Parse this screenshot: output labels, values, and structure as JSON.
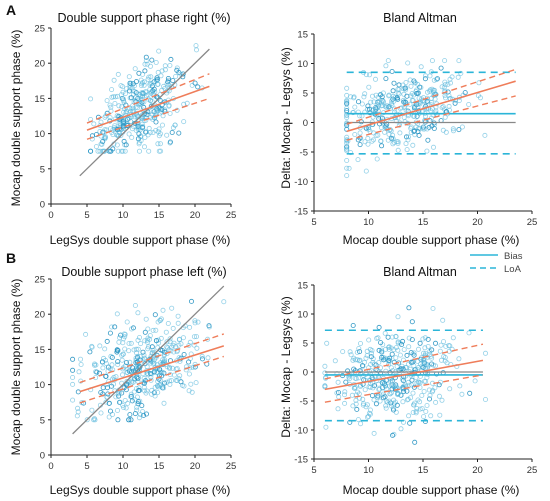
{
  "panel_labels": {
    "a": "A",
    "b": "B"
  },
  "legend": {
    "bias": "Bias",
    "loa": "LoA"
  },
  "colors": {
    "points": "#5bb8dc",
    "points_dark": "#1f8fc0",
    "regression": "#ef7d5a",
    "identity": "#888888",
    "bias_loa": "#2bb5d8",
    "zero": "#888888"
  },
  "chart_data": [
    {
      "type": "scatter",
      "title": "Double support phase right (%)",
      "xlabel": "LegSys double support phase (%)",
      "ylabel": "Mocap double support phase (%)",
      "xlim": [
        0,
        25
      ],
      "ylim": [
        0,
        25
      ],
      "xticks": [
        "0",
        "5",
        "10",
        "15",
        "20",
        "25"
      ],
      "yticks": [
        "0",
        "5",
        "10",
        "15",
        "20",
        "25"
      ],
      "identity_line": {
        "x": [
          4,
          22
        ],
        "y": [
          4,
          22
        ]
      },
      "regression": {
        "x": [
          5,
          22
        ],
        "y": [
          10.5,
          16.7
        ]
      },
      "ci_upper": {
        "x": [
          5,
          22
        ],
        "y": [
          11.5,
          18.5
        ]
      },
      "ci_lower": {
        "x": [
          5,
          22
        ],
        "y": [
          9.2,
          15.0
        ]
      },
      "cloud": {
        "n": 380,
        "cx": 12.5,
        "cy": 13.5,
        "sx": 3.3,
        "sy": 3.2,
        "rho": 0.45,
        "xr": [
          5.5,
          21
        ],
        "yr": [
          7.5,
          23.5
        ],
        "seed": 11
      }
    },
    {
      "type": "scatter",
      "title": "Bland Altman",
      "xlabel": "Mocap double support phase (%)",
      "ylabel": "Delta: Mocap - Legsys (%)",
      "xlim": [
        5,
        25
      ],
      "ylim": [
        -15,
        15
      ],
      "xticks": [
        "5",
        "10",
        "15",
        "20",
        "25"
      ],
      "yticks": [
        "-15",
        "-10",
        "-5",
        "0",
        "5",
        "10",
        "15"
      ],
      "zero_line": {
        "x": [
          8,
          23.5
        ],
        "y": 0
      },
      "bias": {
        "x": [
          8,
          23.5
        ],
        "y": 1.5
      },
      "loa": [
        {
          "x": [
            8,
            23.5
          ],
          "y": 8.5
        },
        {
          "x": [
            8,
            23.5
          ],
          "y": -5.3
        }
      ],
      "regression": {
        "x": [
          8,
          23.5
        ],
        "y": [
          -1.5,
          7.0
        ]
      },
      "ci_upper": {
        "x": [
          8,
          23.5
        ],
        "y": [
          -0.3,
          9.0
        ]
      },
      "ci_lower": {
        "x": [
          8,
          23.5
        ],
        "y": [
          -3.0,
          4.5
        ]
      },
      "cloud": {
        "n": 380,
        "cx": 13.0,
        "cy": 1.7,
        "sx": 3.0,
        "sy": 3.6,
        "rho": 0.35,
        "xr": [
          8,
          23.5
        ],
        "yr": [
          -9,
          10.5
        ],
        "seed": 23
      }
    },
    {
      "type": "scatter",
      "title": "Double support phase left (%)",
      "xlabel": "LegSys double support phase (%)",
      "ylabel": "Mocap double support phase (%)",
      "xlim": [
        0,
        25
      ],
      "ylim": [
        0,
        25
      ],
      "xticks": [
        "0",
        "5",
        "10",
        "15",
        "20",
        "25"
      ],
      "yticks": [
        "0",
        "5",
        "10",
        "15",
        "20",
        "25"
      ],
      "identity_line": {
        "x": [
          3,
          24
        ],
        "y": [
          3,
          24
        ]
      },
      "regression": {
        "x": [
          4,
          24
        ],
        "y": [
          9.0,
          15.5
        ]
      },
      "ci_upper": {
        "x": [
          4,
          24
        ],
        "y": [
          10.3,
          17.2
        ]
      },
      "ci_lower": {
        "x": [
          4,
          24
        ],
        "y": [
          7.4,
          14.0
        ]
      },
      "cloud": {
        "n": 420,
        "cx": 13.0,
        "cy": 12.5,
        "sx": 4.3,
        "sy": 3.5,
        "rho": 0.35,
        "xr": [
          3,
          24
        ],
        "yr": [
          5,
          23.5
        ],
        "seed": 37
      }
    },
    {
      "type": "scatter",
      "title": "Bland Altman",
      "xlabel": "Mocap double support phase (%)",
      "ylabel": "Delta: Mocap - Legsys (%)",
      "xlim": [
        5,
        25
      ],
      "ylim": [
        -15,
        15
      ],
      "xticks": [
        "5",
        "10",
        "15",
        "20",
        "25"
      ],
      "yticks": [
        "-15",
        "-10",
        "-5",
        "0",
        "5",
        "10",
        "15"
      ],
      "zero_line": {
        "x": [
          6,
          20.5
        ],
        "y": 0
      },
      "bias": {
        "x": [
          6,
          20.5
        ],
        "y": -0.5
      },
      "loa": [
        {
          "x": [
            6,
            20.5
          ],
          "y": 7.2
        },
        {
          "x": [
            6,
            20.5
          ],
          "y": -8.4
        }
      ],
      "regression": {
        "x": [
          6,
          20.5
        ],
        "y": [
          -3.0,
          2.0
        ]
      },
      "ci_upper": {
        "x": [
          6,
          20.5
        ],
        "y": [
          -1.2,
          4.8
        ]
      },
      "ci_lower": {
        "x": [
          6,
          20.5
        ],
        "y": [
          -5.2,
          -0.5
        ]
      },
      "cloud": {
        "n": 420,
        "cx": 12.5,
        "cy": -0.5,
        "sx": 3.0,
        "sy": 4.2,
        "rho": 0.25,
        "xr": [
          6,
          21
        ],
        "yr": [
          -12.5,
          12.5
        ],
        "seed": 53
      }
    }
  ]
}
